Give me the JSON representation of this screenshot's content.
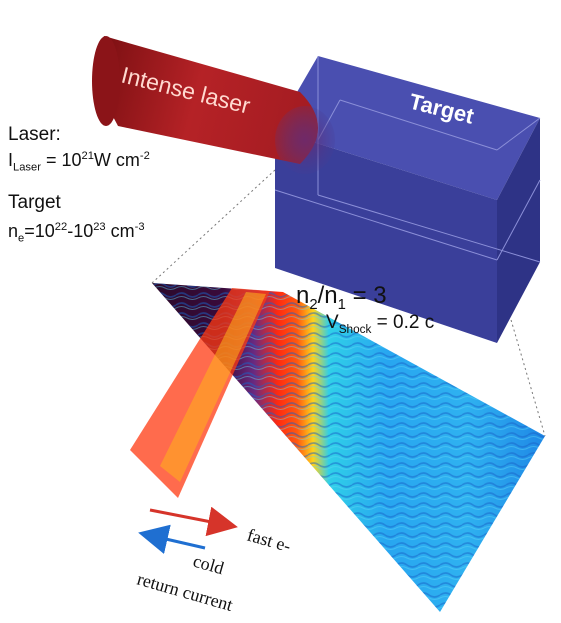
{
  "beam": {
    "label": "Intense laser",
    "color": "#b22222"
  },
  "target": {
    "label": "Target",
    "color": "#3a3f9a"
  },
  "laser_params": {
    "title": "Laser:",
    "intensity_symbol": "I",
    "intensity_sub": "Laser",
    "intensity_value": "= 10",
    "intensity_exp": "21",
    "intensity_unit": "W cm",
    "intensity_unit_exp": "-2"
  },
  "target_params": {
    "title": "Target",
    "density_symbol": "n",
    "density_sub": "e",
    "density_eq": "=10",
    "density_exp1": "22",
    "density_mid": "-10",
    "density_exp2": "23",
    "density_unit": " cm",
    "density_unit_exp": "-3"
  },
  "shock": {
    "ratio_n2": "n",
    "ratio_sub2": "2",
    "ratio_slash": "/n",
    "ratio_sub1": "1",
    "ratio_eq": " = 3",
    "v_symbol": "V",
    "v_sub": "Shock",
    "v_value": " = 0.2 c"
  },
  "arrows": {
    "fast_label": "fast e-",
    "fast_color": "#d6342a",
    "cold_label": "cold",
    "return_label": "return current",
    "return_color": "#1f6fd1"
  }
}
